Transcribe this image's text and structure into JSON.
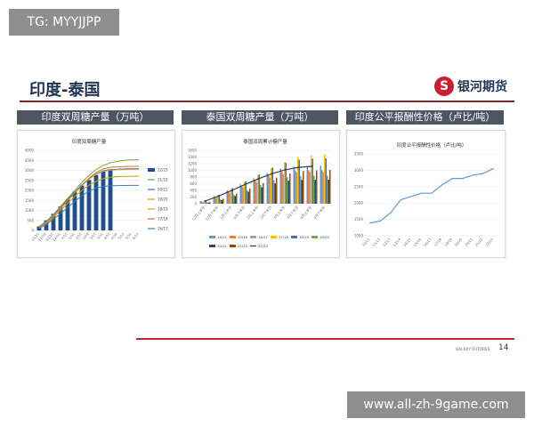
{
  "overlay_tag": "TG: MYYJJPP",
  "watermark": "www.all-zh-9game.com",
  "slide": {
    "title": "印度-泰国",
    "logo_text": "银河期货",
    "footer_brand": "GALAXY FUTURES",
    "page_number": "14",
    "accent_color": "#c8202f",
    "header_color": "#4c5560"
  },
  "panel_headers": [
    "印度双周糖产量（万吨）",
    "泰国双周糖产量（万吨）",
    "印度公平报酬性价格（卢比/吨）"
  ],
  "chart_data": [
    {
      "type": "line",
      "title": "印度双周糖产量",
      "x": [
        "11/15",
        "11/30",
        "12/15",
        "12/31",
        "1/15",
        "1/31",
        "2/15",
        "2/28",
        "3/15",
        "3/31",
        "4/15",
        "4/30",
        "5/15",
        "5/31",
        "6/15"
      ],
      "ylim": [
        0,
        4000
      ],
      "yticks": [
        "0",
        "500",
        "1000",
        "1500",
        "2000",
        "2500",
        "3000",
        "3500",
        "4000"
      ],
      "legend_position": "right",
      "series": [
        {
          "name": "21/22",
          "color": "#7aa83a",
          "values": [
            200,
            450,
            800,
            1200,
            1600,
            2000,
            2400,
            2750,
            3050,
            3250,
            3380,
            3450,
            3500,
            3520,
            3530
          ]
        },
        {
          "name": "20/21",
          "color": "#2e6fb5",
          "values": [
            180,
            420,
            760,
            1140,
            1540,
            1920,
            2270,
            2580,
            2820,
            2980,
            3040,
            3060,
            3070,
            3075,
            3080
          ]
        },
        {
          "name": "19/20",
          "color": "#c7a400",
          "values": [
            150,
            350,
            650,
            1000,
            1350,
            1700,
            2000,
            2260,
            2450,
            2580,
            2650,
            2690,
            2700,
            2705,
            2710
          ]
        },
        {
          "name": "18/19",
          "color": "#e0a030",
          "values": [
            170,
            400,
            740,
            1120,
            1500,
            1880,
            2240,
            2560,
            2800,
            2950,
            3010,
            3030,
            3040,
            3045,
            3050
          ]
        },
        {
          "name": "17/18",
          "color": "#e07030",
          "values": [
            160,
            390,
            720,
            1090,
            1480,
            1870,
            2260,
            2610,
            2890,
            3070,
            3150,
            3180,
            3190,
            3195,
            3200
          ]
        },
        {
          "name": "16/17",
          "color": "#3f7fc4",
          "values": [
            100,
            300,
            560,
            840,
            1140,
            1450,
            1730,
            1960,
            2120,
            2200,
            2230,
            2240,
            2245,
            2250,
            2250
          ]
        }
      ],
      "bars": {
        "name": "22/23",
        "color": "#1f4e8c",
        "values": [
          200,
          500,
          830,
          1200,
          1560,
          1930,
          2240,
          2520,
          2770,
          2950,
          3050,
          null,
          null,
          null,
          null
        ]
      }
    },
    {
      "type": "bar",
      "title": "泰国双周累计糖产量",
      "x": [
        "12月上半月",
        "12月下半月",
        "1月上半月",
        "1月下半月",
        "2月上半月",
        "2月下半月",
        "3月上半月",
        "3月下半月",
        "4月上半月",
        "4月下半月"
      ],
      "ylim": [
        0,
        1600
      ],
      "yticks": [
        "0",
        "200",
        "400",
        "600",
        "800",
        "1000",
        "1200",
        "1400",
        "1600"
      ],
      "legend_position": "bottom",
      "series": [
        {
          "name": "14/15",
          "color": "#5b9bd5",
          "values": [
            80,
            230,
            400,
            580,
            760,
            920,
            1050,
            1110,
            1130,
            1140
          ]
        },
        {
          "name": "15/16",
          "color": "#ed7d31",
          "values": [
            60,
            200,
            370,
            540,
            710,
            860,
            960,
            1000,
            1010,
            1010
          ]
        },
        {
          "name": "16/17",
          "color": "#a5a5a5",
          "values": [
            50,
            170,
            330,
            490,
            650,
            790,
            890,
            940,
            950,
            950
          ]
        },
        {
          "name": "17/18",
          "color": "#ffc000",
          "values": [
            90,
            250,
            440,
            650,
            860,
            1070,
            1250,
            1400,
            1460,
            1480
          ]
        },
        {
          "name": "18/19",
          "color": "#4472c4",
          "values": [
            100,
            270,
            470,
            680,
            880,
            1080,
            1230,
            1320,
            1350,
            1360
          ]
        },
        {
          "name": "19/20",
          "color": "#70ad47",
          "values": [
            40,
            140,
            270,
            410,
            560,
            700,
            790,
            830,
            840,
            840
          ]
        },
        {
          "name": "20/21",
          "color": "#264478",
          "values": [
            30,
            110,
            230,
            360,
            490,
            610,
            690,
            710,
            720,
            720
          ]
        },
        {
          "name": "21/22",
          "color": "#9e480e",
          "values": [
            50,
            150,
            300,
            460,
            620,
            780,
            900,
            980,
            1000,
            1010
          ]
        }
      ],
      "line": {
        "name": "22/23",
        "color": "#333f50",
        "values": [
          80,
          230,
          400,
          580,
          750,
          900,
          1020,
          1090,
          1120,
          null
        ]
      }
    },
    {
      "type": "line",
      "title": "印度公平报酬性价格（卢比/吨）",
      "x": [
        "10/11",
        "11/12",
        "12/13",
        "13/14",
        "14/15",
        "15/16",
        "16/17",
        "17/18",
        "18/19",
        "19/20",
        "20/21",
        "21/22",
        "22/23"
      ],
      "ylim": [
        1000,
        3500
      ],
      "yticks": [
        "1000",
        "1500",
        "2000",
        "2500",
        "3000",
        "3500"
      ],
      "legend_position": "none",
      "series": [
        {
          "name": "",
          "color": "#5b9bd5",
          "values": [
            1391,
            1450,
            1700,
            2100,
            2200,
            2300,
            2300,
            2550,
            2750,
            2750,
            2850,
            2900,
            3050
          ]
        }
      ]
    }
  ]
}
